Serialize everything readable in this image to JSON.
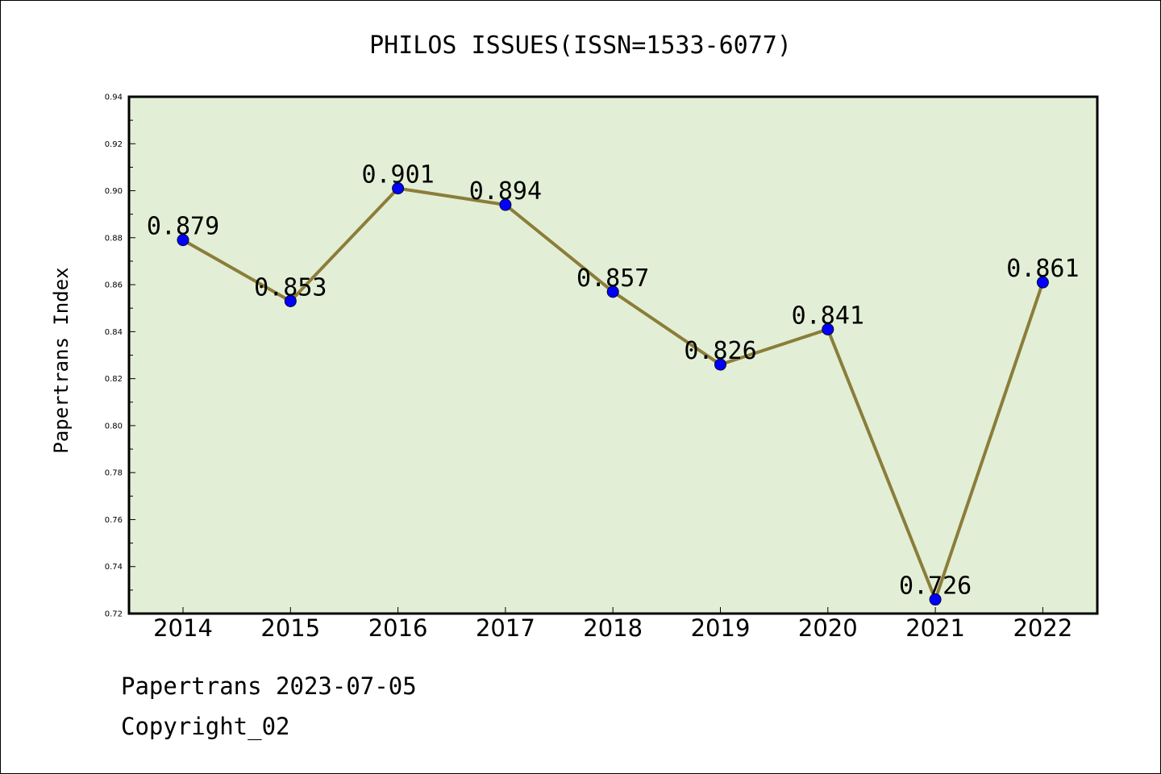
{
  "chart_data": {
    "type": "line",
    "title": "PHILOS ISSUES(ISSN=1533-6077)",
    "xlabel": "",
    "ylabel": "Papertrans Index",
    "categories": [
      "2014",
      "2015",
      "2016",
      "2017",
      "2018",
      "2019",
      "2020",
      "2021",
      "2022"
    ],
    "values": [
      0.879,
      0.853,
      0.901,
      0.894,
      0.857,
      0.826,
      0.841,
      0.726,
      0.861
    ],
    "data_labels": [
      "0.879",
      "0.853",
      "0.901",
      "0.894",
      "0.857",
      "0.826",
      "0.841",
      "0.726",
      "0.861"
    ],
    "ylim": [
      0.72,
      0.94
    ],
    "yticks": [
      "0.72",
      "0.74",
      "0.76",
      "0.78",
      "0.80",
      "0.82",
      "0.84",
      "0.86",
      "0.88",
      "0.90",
      "0.92",
      "0.94"
    ],
    "grid": false,
    "line_color": "#8b7d3a",
    "marker_color": "#0000ff",
    "plot_background": "#e2efd6"
  },
  "footer": {
    "line1": "Papertrans 2023-07-05",
    "line2": "Copyright_02"
  }
}
